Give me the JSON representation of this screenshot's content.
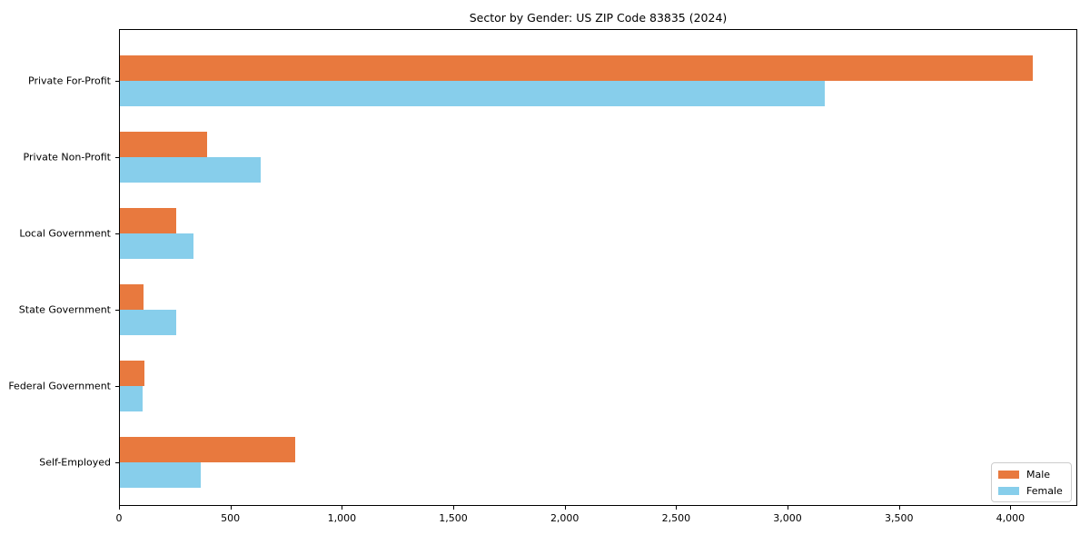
{
  "chart_data": {
    "type": "bar",
    "orientation": "horizontal",
    "title": "Sector by Gender: US ZIP Code 83835 (2024)",
    "categories": [
      "Private For-Profit",
      "Private Non-Profit",
      "Local Government",
      "State Government",
      "Federal Government",
      "Self-Employed"
    ],
    "series": [
      {
        "name": "Male",
        "color": "#e8793e",
        "values": [
          4100,
          395,
          255,
          110,
          115,
          790
        ]
      },
      {
        "name": "Female",
        "color": "#87ceeb",
        "values": [
          3165,
          635,
          335,
          255,
          105,
          365
        ]
      }
    ],
    "xlabel": "",
    "ylabel": "",
    "xlim": [
      0,
      4300
    ],
    "x_ticks": [
      0,
      500,
      1000,
      1500,
      2000,
      2500,
      3000,
      3500,
      4000
    ],
    "x_tick_labels": [
      "0",
      "500",
      "1,000",
      "1,500",
      "2,000",
      "2,500",
      "3,000",
      "3,500",
      "4,000"
    ],
    "grid": false,
    "legend": {
      "position": "lower right",
      "entries": [
        {
          "label": "Male",
          "color": "#e8793e"
        },
        {
          "label": "Female",
          "color": "#87ceeb"
        }
      ]
    }
  }
}
